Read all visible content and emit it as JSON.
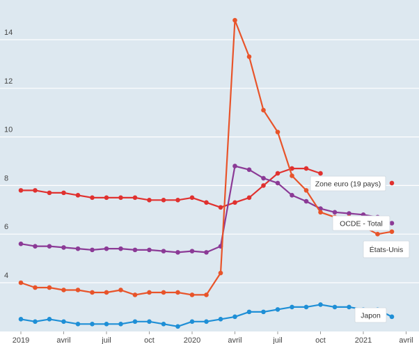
{
  "chart_data": {
    "type": "line",
    "title": "",
    "xlabel": "",
    "ylabel": "",
    "x_ticks": [
      "2019",
      "avril",
      "juil",
      "oct",
      "2020",
      "avril",
      "juil",
      "oct",
      "2021",
      "avril"
    ],
    "y_ticks": [
      "4",
      "6",
      "8",
      "10",
      "12",
      "14"
    ],
    "ylim": [
      2.2,
      15.2
    ],
    "grid": true,
    "background": "#dde8f0",
    "series": [
      {
        "name": "Zone euro (19 pays)",
        "color": "#e0312f",
        "values": [
          7.8,
          7.8,
          7.7,
          7.7,
          7.6,
          7.5,
          7.5,
          7.5,
          7.5,
          7.4,
          7.4,
          7.4,
          7.5,
          7.3,
          7.1,
          7.3,
          7.5,
          8.0,
          8.5,
          8.7,
          8.7,
          8.5,
          null,
          null,
          null,
          null,
          8.1
        ]
      },
      {
        "name": "OCDE - Total",
        "color": "#8b3a96",
        "values": [
          5.6,
          5.5,
          5.5,
          5.45,
          5.4,
          5.35,
          5.4,
          5.4,
          5.35,
          5.35,
          5.3,
          5.25,
          5.3,
          5.25,
          5.5,
          8.8,
          8.65,
          8.3,
          8.1,
          7.6,
          7.35,
          7.05,
          6.9,
          6.85,
          6.8,
          6.7,
          6.45
        ]
      },
      {
        "name": "États-Unis",
        "color": "#e8542a",
        "values": [
          4.0,
          3.8,
          3.8,
          3.7,
          3.7,
          3.6,
          3.6,
          3.7,
          3.5,
          3.6,
          3.6,
          3.6,
          3.5,
          3.5,
          4.4,
          14.8,
          13.3,
          11.1,
          10.2,
          8.4,
          7.8,
          6.9,
          6.7,
          6.7,
          6.3,
          6.0,
          6.1
        ]
      },
      {
        "name": "Japon",
        "color": "#1f8fd6",
        "values": [
          2.5,
          2.4,
          2.5,
          2.4,
          2.3,
          2.3,
          2.3,
          2.3,
          2.4,
          2.4,
          2.3,
          2.2,
          2.4,
          2.4,
          2.5,
          2.6,
          2.8,
          2.8,
          2.9,
          3.0,
          3.0,
          3.1,
          3.0,
          3.0,
          2.9,
          2.9,
          2.6
        ]
      }
    ],
    "series_labels": [
      {
        "series": "Zone euro (19 pays)",
        "text": "Zone euro (19 pays)"
      },
      {
        "series": "OCDE - Total",
        "text": "OCDE - Total"
      },
      {
        "series": "États-Unis",
        "text": "États-Unis"
      },
      {
        "series": "Japon",
        "text": "Japon"
      }
    ]
  }
}
